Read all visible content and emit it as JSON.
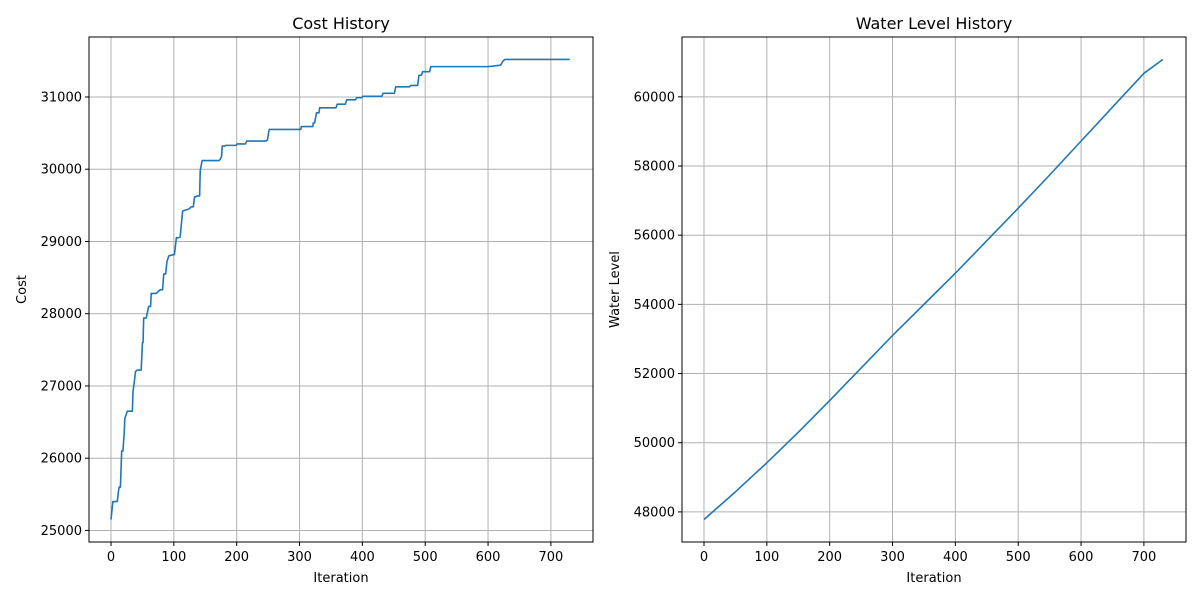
{
  "chart_data": [
    {
      "type": "line",
      "title": "Cost History",
      "xlabel": "Iteration",
      "ylabel": "Cost",
      "xlim": [
        -35,
        767
      ],
      "ylim": [
        24840,
        31830
      ],
      "xticks": [
        0,
        100,
        200,
        300,
        400,
        500,
        600,
        700
      ],
      "yticks": [
        25000,
        26000,
        27000,
        28000,
        29000,
        30000,
        31000
      ],
      "grid": true,
      "color": "#1f77b4",
      "series": [
        {
          "x": [
            0,
            3,
            4,
            10,
            12,
            13,
            15,
            17,
            18,
            19,
            21,
            22,
            24,
            26,
            29,
            34,
            35,
            37,
            39,
            42,
            46,
            48,
            49,
            50,
            51,
            52,
            55,
            56,
            60,
            61,
            63,
            64,
            67,
            72,
            78,
            82,
            84,
            87,
            89,
            92,
            96,
            101,
            104,
            106,
            110,
            114,
            117,
            124,
            128,
            131,
            133,
            136,
            137,
            141,
            142,
            145,
            146,
            172,
            174,
            176,
            177,
            181,
            182,
            199,
            201,
            214,
            216,
            246,
            248,
            249,
            251,
            252,
            302,
            303,
            321,
            322,
            324,
            327,
            331,
            332,
            339,
            358,
            360,
            373,
            375,
            389,
            391,
            399,
            401,
            431,
            433,
            451,
            453,
            475,
            477,
            488,
            490,
            494,
            496,
            507,
            509,
            530,
            532,
            600,
            620,
            622,
            624,
            627,
            629,
            730
          ],
          "values": [
            25150,
            25400,
            25400,
            25400,
            25550,
            25600,
            25600,
            26100,
            26100,
            26100,
            26350,
            26550,
            26600,
            26650,
            26650,
            26650,
            26920,
            27050,
            27200,
            27220,
            27220,
            27220,
            27400,
            27600,
            27600,
            27940,
            27940,
            27940,
            28100,
            28100,
            28100,
            28280,
            28280,
            28280,
            28330,
            28330,
            28550,
            28550,
            28720,
            28800,
            28810,
            28820,
            29050,
            29050,
            29060,
            29420,
            29430,
            29450,
            29480,
            29480,
            29620,
            29620,
            29630,
            29630,
            29980,
            30120,
            30120,
            30120,
            30140,
            30180,
            30320,
            30320,
            30330,
            30330,
            30350,
            30350,
            30390,
            30390,
            30400,
            30400,
            30520,
            30550,
            30550,
            30590,
            30590,
            30640,
            30640,
            30780,
            30780,
            30850,
            30850,
            30850,
            30900,
            30900,
            30960,
            30960,
            30990,
            30990,
            31010,
            31010,
            31050,
            31050,
            31140,
            31140,
            31160,
            31160,
            31300,
            31300,
            31350,
            31350,
            31420,
            31420,
            31420,
            31420,
            31440,
            31470,
            31500,
            31520,
            31520,
            31520
          ]
        }
      ]
    },
    {
      "type": "line",
      "title": "Water Level History",
      "xlabel": "Iteration",
      "ylabel": "Water Level",
      "xlim": [
        -35,
        767
      ],
      "ylim": [
        47130,
        61730
      ],
      "xticks": [
        0,
        100,
        200,
        300,
        400,
        500,
        600,
        700
      ],
      "yticks": [
        48000,
        50000,
        52000,
        54000,
        56000,
        58000,
        60000
      ],
      "grid": true,
      "color": "#1f77b4",
      "series": [
        {
          "x": [
            0,
            50,
            100,
            150,
            200,
            250,
            300,
            350,
            400,
            450,
            500,
            550,
            600,
            650,
            700,
            730
          ],
          "values": [
            47780,
            48580,
            49420,
            50300,
            51220,
            52160,
            53100,
            54000,
            54900,
            55840,
            56780,
            57740,
            58720,
            59700,
            60680,
            61080
          ]
        }
      ]
    }
  ]
}
